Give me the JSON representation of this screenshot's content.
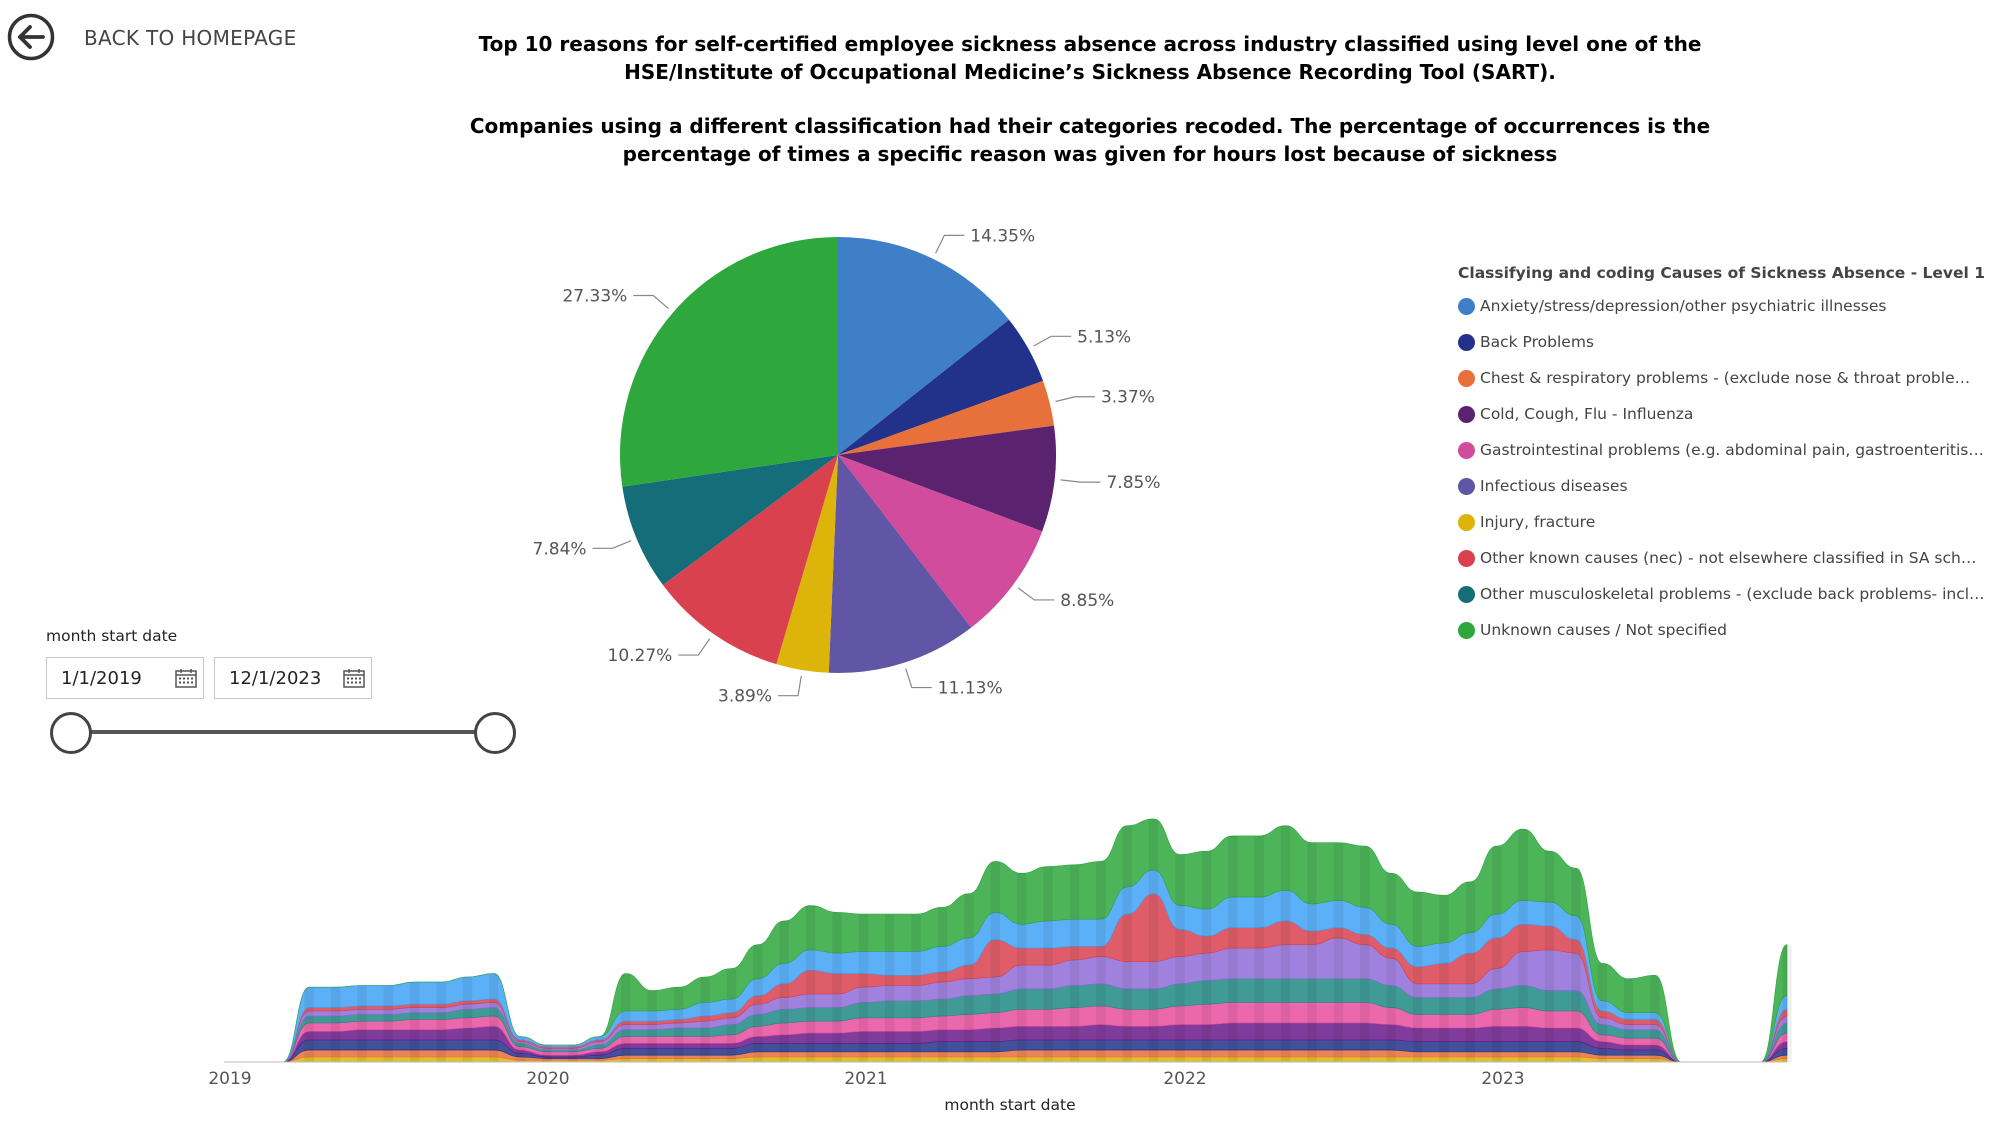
{
  "nav": {
    "back_label": "BACK TO HOMEPAGE"
  },
  "titles": {
    "line1": "Top 10 reasons for self-certified employee sickness absence across industry classified using level one of the HSE/Institute of Occupational Medicine’s Sickness Absence Recording Tool (SART).",
    "line2": "Companies using a different classification had their categories recoded. The percentage of occurrences is the percentage of times a specific reason was given for hours lost because of sickness"
  },
  "slicer": {
    "title": "month start date",
    "start": "1/1/2019",
    "end": "12/1/2023",
    "range_fraction": [
      0,
      1
    ]
  },
  "legend": {
    "title": "Classifying and coding Causes of Sickness Absence - Level 1",
    "items": [
      {
        "label": "Anxiety/stress/depression/other psychiatric illnesses",
        "color": "#3F7FC8"
      },
      {
        "label": "Back Problems",
        "color": "#22318A"
      },
      {
        "label": "Chest & respiratory problems - (exclude nose & throat problems, ...",
        "color": "#E8703A"
      },
      {
        "label": "Cold, Cough, Flu - Influenza",
        "color": "#5B2270"
      },
      {
        "label": "Gastrointestinal problems (e.g. abdominal pain, gastroenteritis, vo...",
        "color": "#D24C9E"
      },
      {
        "label": "Infectious diseases",
        "color": "#6155A5"
      },
      {
        "label": "Injury, fracture",
        "color": "#DDB40A"
      },
      {
        "label": "Other known causes (nec) - not elsewhere classified in SA scheme",
        "color": "#D9414F"
      },
      {
        "label": "Other musculoskeletal problems - (exclude back problems- includ...",
        "color": "#146D78"
      },
      {
        "label": "Unknown causes / Not specified",
        "color": "#2EA73D"
      }
    ]
  },
  "chart_data": [
    {
      "type": "pie",
      "title": "",
      "slices": [
        {
          "label": "Anxiety/stress/depression/other psychiatric illnesses",
          "value": 14.35,
          "display": "14.35%",
          "color": "#3F7FC8"
        },
        {
          "label": "Back Problems",
          "value": 5.13,
          "display": "5.13%",
          "color": "#22318A"
        },
        {
          "label": "Chest & respiratory problems",
          "value": 3.37,
          "display": "3.37%",
          "color": "#E8703A"
        },
        {
          "label": "Cold, Cough, Flu - Influenza",
          "value": 7.85,
          "display": "7.85%",
          "color": "#5B2270"
        },
        {
          "label": "Gastrointestinal problems",
          "value": 8.85,
          "display": "8.85%",
          "color": "#D24C9E"
        },
        {
          "label": "Infectious diseases",
          "value": 11.13,
          "display": "11.13%",
          "color": "#6155A5"
        },
        {
          "label": "Injury, fracture",
          "value": 3.89,
          "display": "3.89%",
          "color": "#DDB40A"
        },
        {
          "label": "Other known causes (nec)",
          "value": 10.27,
          "display": "10.27%",
          "color": "#D9414F"
        },
        {
          "label": "Other musculoskeletal problems",
          "value": 7.84,
          "display": "7.84%",
          "color": "#146D78"
        },
        {
          "label": "Unknown causes / Not specified",
          "value": 27.33,
          "display": "27.33%",
          "color": "#2EA73D"
        }
      ]
    },
    {
      "type": "area",
      "xlabel": "month start date",
      "ylabel": "",
      "x_ticks": [
        "2019",
        "2020",
        "2021",
        "2022",
        "2023"
      ],
      "x_range": [
        "2019-01",
        "2023-12"
      ],
      "stacked": true,
      "series_order": [
        "Unknown causes / Not specified",
        "Anxiety/stress/depression/other psychiatric illnesses",
        "Other known causes (nec) - not elsewhere classified in SA scheme",
        "Infectious diseases",
        "Other musculoskeletal problems - (exclude back problems- includ...",
        "Gastrointestinal problems (e.g. abdominal pain, gastroenteritis, vo...",
        "Cold, Cough, Flu - Influenza",
        "Back Problems",
        "Chest & respiratory problems - (exclude nose & throat problems, ...",
        "Injury, fracture"
      ],
      "series_colors": [
        "#2EA73D",
        "#3FA2F6",
        "#D9414F",
        "#8F6CD8",
        "#1F8A85",
        "#E84E9E",
        "#6A1A8A",
        "#22318A",
        "#E8703A",
        "#DDB40A"
      ],
      "months": [
        "2019-01",
        "2019-02",
        "2019-03",
        "2019-04",
        "2019-05",
        "2019-06",
        "2019-07",
        "2019-08",
        "2019-09",
        "2019-10",
        "2019-11",
        "2019-12",
        "2020-01",
        "2020-02",
        "2020-03",
        "2020-04",
        "2020-05",
        "2020-06",
        "2020-07",
        "2020-08",
        "2020-09",
        "2020-10",
        "2020-11",
        "2020-12",
        "2021-01",
        "2021-02",
        "2021-03",
        "2021-04",
        "2021-05",
        "2021-06",
        "2021-07",
        "2021-08",
        "2021-09",
        "2021-10",
        "2021-11",
        "2021-12",
        "2022-01",
        "2022-02",
        "2022-03",
        "2022-04",
        "2022-05",
        "2022-06",
        "2022-07",
        "2022-08",
        "2022-09",
        "2022-10",
        "2022-11",
        "2022-12",
        "2023-01",
        "2023-02",
        "2023-03",
        "2023-04",
        "2023-05",
        "2023-06",
        "2023-07",
        "2023-08",
        "2023-09",
        "2023-10",
        "2023-11",
        "2023-12"
      ],
      "values": [
        [
          0,
          0,
          0,
          0,
          0,
          0,
          0,
          0,
          0,
          0
        ],
        [
          0,
          0,
          0,
          0,
          0,
          0,
          0,
          0,
          0,
          0
        ],
        [
          0,
          0,
          0,
          0,
          0,
          0,
          0,
          0,
          0,
          0
        ],
        [
          0,
          12,
          2,
          3,
          4,
          5,
          5,
          6,
          4,
          3
        ],
        [
          0,
          12,
          2,
          3,
          4,
          5,
          5,
          6,
          4,
          3
        ],
        [
          0,
          12,
          2,
          3,
          4,
          5,
          6,
          6,
          4,
          3
        ],
        [
          0,
          12,
          2,
          3,
          4,
          5,
          6,
          6,
          4,
          3
        ],
        [
          0,
          13,
          2,
          3,
          4,
          6,
          6,
          6,
          4,
          3
        ],
        [
          0,
          13,
          2,
          3,
          4,
          6,
          6,
          6,
          4,
          3
        ],
        [
          0,
          14,
          2,
          3,
          5,
          6,
          7,
          6,
          4,
          3
        ],
        [
          0,
          15,
          2,
          3,
          5,
          6,
          8,
          6,
          4,
          3
        ],
        [
          0,
          2,
          1,
          1,
          2,
          2,
          2,
          2,
          2,
          1
        ],
        [
          0,
          1,
          1,
          1,
          1,
          2,
          1,
          1,
          1,
          1
        ],
        [
          0,
          1,
          1,
          1,
          1,
          2,
          1,
          1,
          1,
          1
        ],
        [
          0,
          2,
          1,
          2,
          2,
          2,
          2,
          2,
          1,
          1
        ],
        [
          22,
          6,
          2,
          3,
          4,
          4,
          3,
          4,
          2,
          2
        ],
        [
          12,
          6,
          2,
          3,
          4,
          4,
          3,
          4,
          2,
          2
        ],
        [
          13,
          6,
          2,
          3,
          5,
          4,
          3,
          4,
          2,
          2
        ],
        [
          15,
          8,
          3,
          4,
          5,
          4,
          3,
          4,
          2,
          2
        ],
        [
          18,
          8,
          3,
          4,
          6,
          5,
          3,
          4,
          2,
          2
        ],
        [
          20,
          10,
          5,
          6,
          7,
          6,
          4,
          5,
          3,
          3
        ],
        [
          25,
          12,
          8,
          7,
          8,
          7,
          5,
          5,
          3,
          3
        ],
        [
          26,
          12,
          14,
          8,
          8,
          7,
          6,
          5,
          3,
          3
        ],
        [
          24,
          12,
          12,
          8,
          8,
          7,
          6,
          5,
          3,
          3
        ],
        [
          22,
          13,
          8,
          9,
          9,
          8,
          7,
          5,
          3,
          3
        ],
        [
          22,
          14,
          6,
          9,
          10,
          8,
          7,
          5,
          3,
          3
        ],
        [
          22,
          14,
          6,
          9,
          10,
          8,
          7,
          5,
          3,
          3
        ],
        [
          23,
          15,
          6,
          10,
          10,
          8,
          7,
          6,
          3,
          3
        ],
        [
          26,
          16,
          8,
          10,
          11,
          9,
          7,
          6,
          3,
          3
        ],
        [
          30,
          16,
          22,
          10,
          11,
          9,
          8,
          6,
          3,
          3
        ],
        [
          30,
          14,
          10,
          14,
          12,
          10,
          8,
          6,
          4,
          3
        ],
        [
          32,
          16,
          10,
          14,
          12,
          10,
          8,
          6,
          4,
          3
        ],
        [
          32,
          16,
          8,
          15,
          13,
          11,
          8,
          6,
          4,
          3
        ],
        [
          34,
          16,
          6,
          16,
          13,
          11,
          9,
          6,
          4,
          3
        ],
        [
          36,
          16,
          28,
          16,
          12,
          10,
          8,
          6,
          4,
          3
        ],
        [
          30,
          14,
          40,
          16,
          12,
          10,
          8,
          6,
          4,
          3
        ],
        [
          30,
          14,
          16,
          16,
          13,
          11,
          9,
          6,
          4,
          3
        ],
        [
          34,
          16,
          10,
          16,
          14,
          12,
          9,
          6,
          4,
          3
        ],
        [
          36,
          18,
          12,
          18,
          14,
          12,
          10,
          6,
          4,
          3
        ],
        [
          36,
          18,
          12,
          18,
          14,
          12,
          10,
          6,
          4,
          3
        ],
        [
          38,
          18,
          14,
          20,
          14,
          12,
          10,
          6,
          4,
          3
        ],
        [
          36,
          16,
          8,
          20,
          14,
          12,
          10,
          6,
          4,
          3
        ],
        [
          34,
          16,
          6,
          24,
          14,
          12,
          10,
          6,
          4,
          3
        ],
        [
          36,
          16,
          6,
          20,
          14,
          12,
          10,
          6,
          4,
          3
        ],
        [
          30,
          14,
          6,
          16,
          13,
          10,
          9,
          6,
          4,
          3
        ],
        [
          32,
          12,
          10,
          8,
          10,
          8,
          8,
          6,
          3,
          3
        ],
        [
          28,
          12,
          12,
          8,
          10,
          8,
          8,
          6,
          3,
          3
        ],
        [
          30,
          12,
          18,
          8,
          10,
          8,
          8,
          6,
          3,
          3
        ],
        [
          40,
          14,
          18,
          12,
          12,
          10,
          9,
          6,
          3,
          3
        ],
        [
          42,
          14,
          16,
          20,
          13,
          11,
          9,
          6,
          3,
          3
        ],
        [
          30,
          14,
          14,
          24,
          12,
          10,
          8,
          6,
          3,
          3
        ],
        [
          28,
          14,
          8,
          22,
          12,
          10,
          8,
          6,
          3,
          3
        ],
        [
          22,
          6,
          4,
          4,
          6,
          4,
          4,
          4,
          2,
          2
        ],
        [
          20,
          4,
          3,
          3,
          5,
          4,
          3,
          3,
          2,
          2
        ],
        [
          22,
          4,
          3,
          3,
          5,
          4,
          3,
          3,
          2,
          2
        ],
        [
          0,
          0,
          0,
          0,
          0,
          0,
          0,
          0,
          0,
          0
        ],
        [
          0,
          0,
          0,
          0,
          0,
          0,
          0,
          0,
          0,
          0
        ],
        [
          0,
          0,
          0,
          0,
          0,
          0,
          0,
          0,
          0,
          0
        ],
        [
          0,
          0,
          0,
          0,
          0,
          0,
          0,
          0,
          0,
          0
        ],
        [
          30,
          8,
          4,
          4,
          6,
          5,
          4,
          4,
          2,
          2
        ]
      ]
    }
  ]
}
